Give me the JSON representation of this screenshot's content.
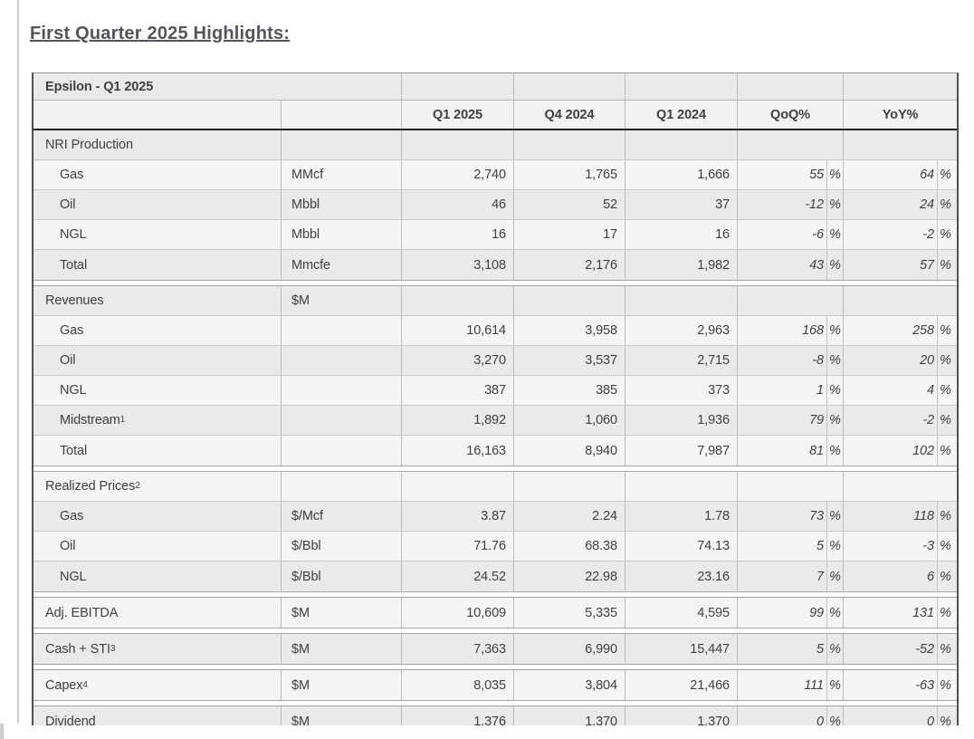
{
  "page": {
    "title": "First Quarter 2025 Highlights:"
  },
  "table": {
    "corner_title": "Epsilon - Q1 2025",
    "columns": [
      "Q1 2025",
      "Q4 2024",
      "Q1 2024",
      "QoQ%",
      "YoY%"
    ],
    "percent_sign": "%",
    "blocks": [
      {
        "rows": [
          {
            "kind": "section",
            "label": "NRI Production",
            "shade": "g"
          },
          {
            "kind": "data",
            "label": "Gas",
            "unit": "MMcf",
            "values": [
              "2,740",
              "1,765",
              "1,666"
            ],
            "qoq": "55",
            "yoy": "64",
            "shade": "l"
          },
          {
            "kind": "data",
            "label": "Oil",
            "unit": "Mbbl",
            "values": [
              "46",
              "52",
              "37"
            ],
            "qoq": "-12",
            "yoy": "24",
            "shade": "g"
          },
          {
            "kind": "data",
            "label": "NGL",
            "unit": "Mbbl",
            "values": [
              "16",
              "17",
              "16"
            ],
            "qoq": "-6",
            "yoy": "-2",
            "shade": "l"
          },
          {
            "kind": "data",
            "label": "Total",
            "unit": "Mmcfe",
            "values": [
              "3,108",
              "2,176",
              "1,982"
            ],
            "qoq": "43",
            "yoy": "57",
            "shade": "g"
          }
        ]
      },
      {
        "rows": [
          {
            "kind": "section",
            "label": "Revenues",
            "unit": "$M",
            "shade": "g"
          },
          {
            "kind": "data",
            "label": "Gas",
            "values": [
              "10,614",
              "3,958",
              "2,963"
            ],
            "qoq": "168",
            "yoy": "258",
            "shade": "l"
          },
          {
            "kind": "data",
            "label": "Oil",
            "values": [
              "3,270",
              "3,537",
              "2,715"
            ],
            "qoq": "-8",
            "yoy": "20",
            "shade": "g"
          },
          {
            "kind": "data",
            "label": "NGL",
            "values": [
              "387",
              "385",
              "373"
            ],
            "qoq": "1",
            "yoy": "4",
            "shade": "l"
          },
          {
            "kind": "data",
            "label": "Midstream",
            "sup": "1",
            "values": [
              "1,892",
              "1,060",
              "1,936"
            ],
            "qoq": "79",
            "yoy": "-2",
            "shade": "g"
          },
          {
            "kind": "data",
            "label": "Total",
            "values": [
              "16,163",
              "8,940",
              "7,987"
            ],
            "qoq": "81",
            "yoy": "102",
            "shade": "l"
          }
        ]
      },
      {
        "rows": [
          {
            "kind": "section",
            "label": "Realized Prices",
            "sup": "2",
            "shade": "l"
          },
          {
            "kind": "data",
            "label": "Gas",
            "unit": "$/Mcf",
            "values": [
              "3.87",
              "2.24",
              "1.78"
            ],
            "qoq": "73",
            "yoy": "118",
            "shade": "g"
          },
          {
            "kind": "data",
            "label": "Oil",
            "unit": "$/Bbl",
            "values": [
              "71.76",
              "68.38",
              "74.13"
            ],
            "qoq": "5",
            "yoy": "-3",
            "shade": "l"
          },
          {
            "kind": "data",
            "label": "NGL",
            "unit": "$/Bbl",
            "values": [
              "24.52",
              "22.98",
              "23.16"
            ],
            "qoq": "7",
            "yoy": "6",
            "shade": "g"
          }
        ]
      },
      {
        "rows": [
          {
            "kind": "single",
            "label": "Adj. EBITDA",
            "unit": "$M",
            "values": [
              "10,609",
              "5,335",
              "4,595"
            ],
            "qoq": "99",
            "yoy": "131",
            "shade": "l"
          }
        ]
      },
      {
        "rows": [
          {
            "kind": "single",
            "label": "Cash + STI",
            "sup": "3",
            "unit": "$M",
            "values": [
              "7,363",
              "6,990",
              "15,447"
            ],
            "qoq": "5",
            "yoy": "-52",
            "shade": "g"
          }
        ]
      },
      {
        "rows": [
          {
            "kind": "single",
            "label": "Capex",
            "sup": "4",
            "unit": "$M",
            "values": [
              "8,035",
              "3,804",
              "21,466"
            ],
            "qoq": "111",
            "yoy": "-63",
            "shade": "l"
          }
        ]
      },
      {
        "rows": [
          {
            "kind": "single",
            "label": "Dividend",
            "unit": "$M",
            "values": [
              "1,376",
              "1,370",
              "1,370"
            ],
            "qoq": "0",
            "yoy": "0",
            "shade": "g"
          }
        ]
      }
    ]
  }
}
